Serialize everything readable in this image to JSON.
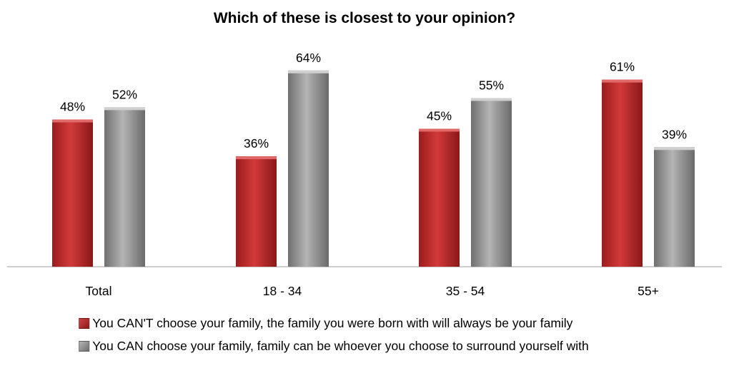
{
  "chart_data": {
    "type": "bar",
    "title": "Which of these is closest to your opinion?",
    "categories": [
      "Total",
      "18 - 34",
      "35 - 54",
      "55+"
    ],
    "series": [
      {
        "name": "You CAN'T choose your family, the family you were born with will always be your family",
        "values": [
          48,
          36,
          45,
          61
        ],
        "color": "#b22222"
      },
      {
        "name": "You CAN choose your family, family can be whoever you choose to surround yourself with",
        "values": [
          52,
          64,
          55,
          39
        ],
        "color": "#8c8c8c"
      }
    ],
    "value_suffix": "%",
    "ylim": [
      0,
      70
    ],
    "grid": false,
    "legend_position": "bottom"
  }
}
